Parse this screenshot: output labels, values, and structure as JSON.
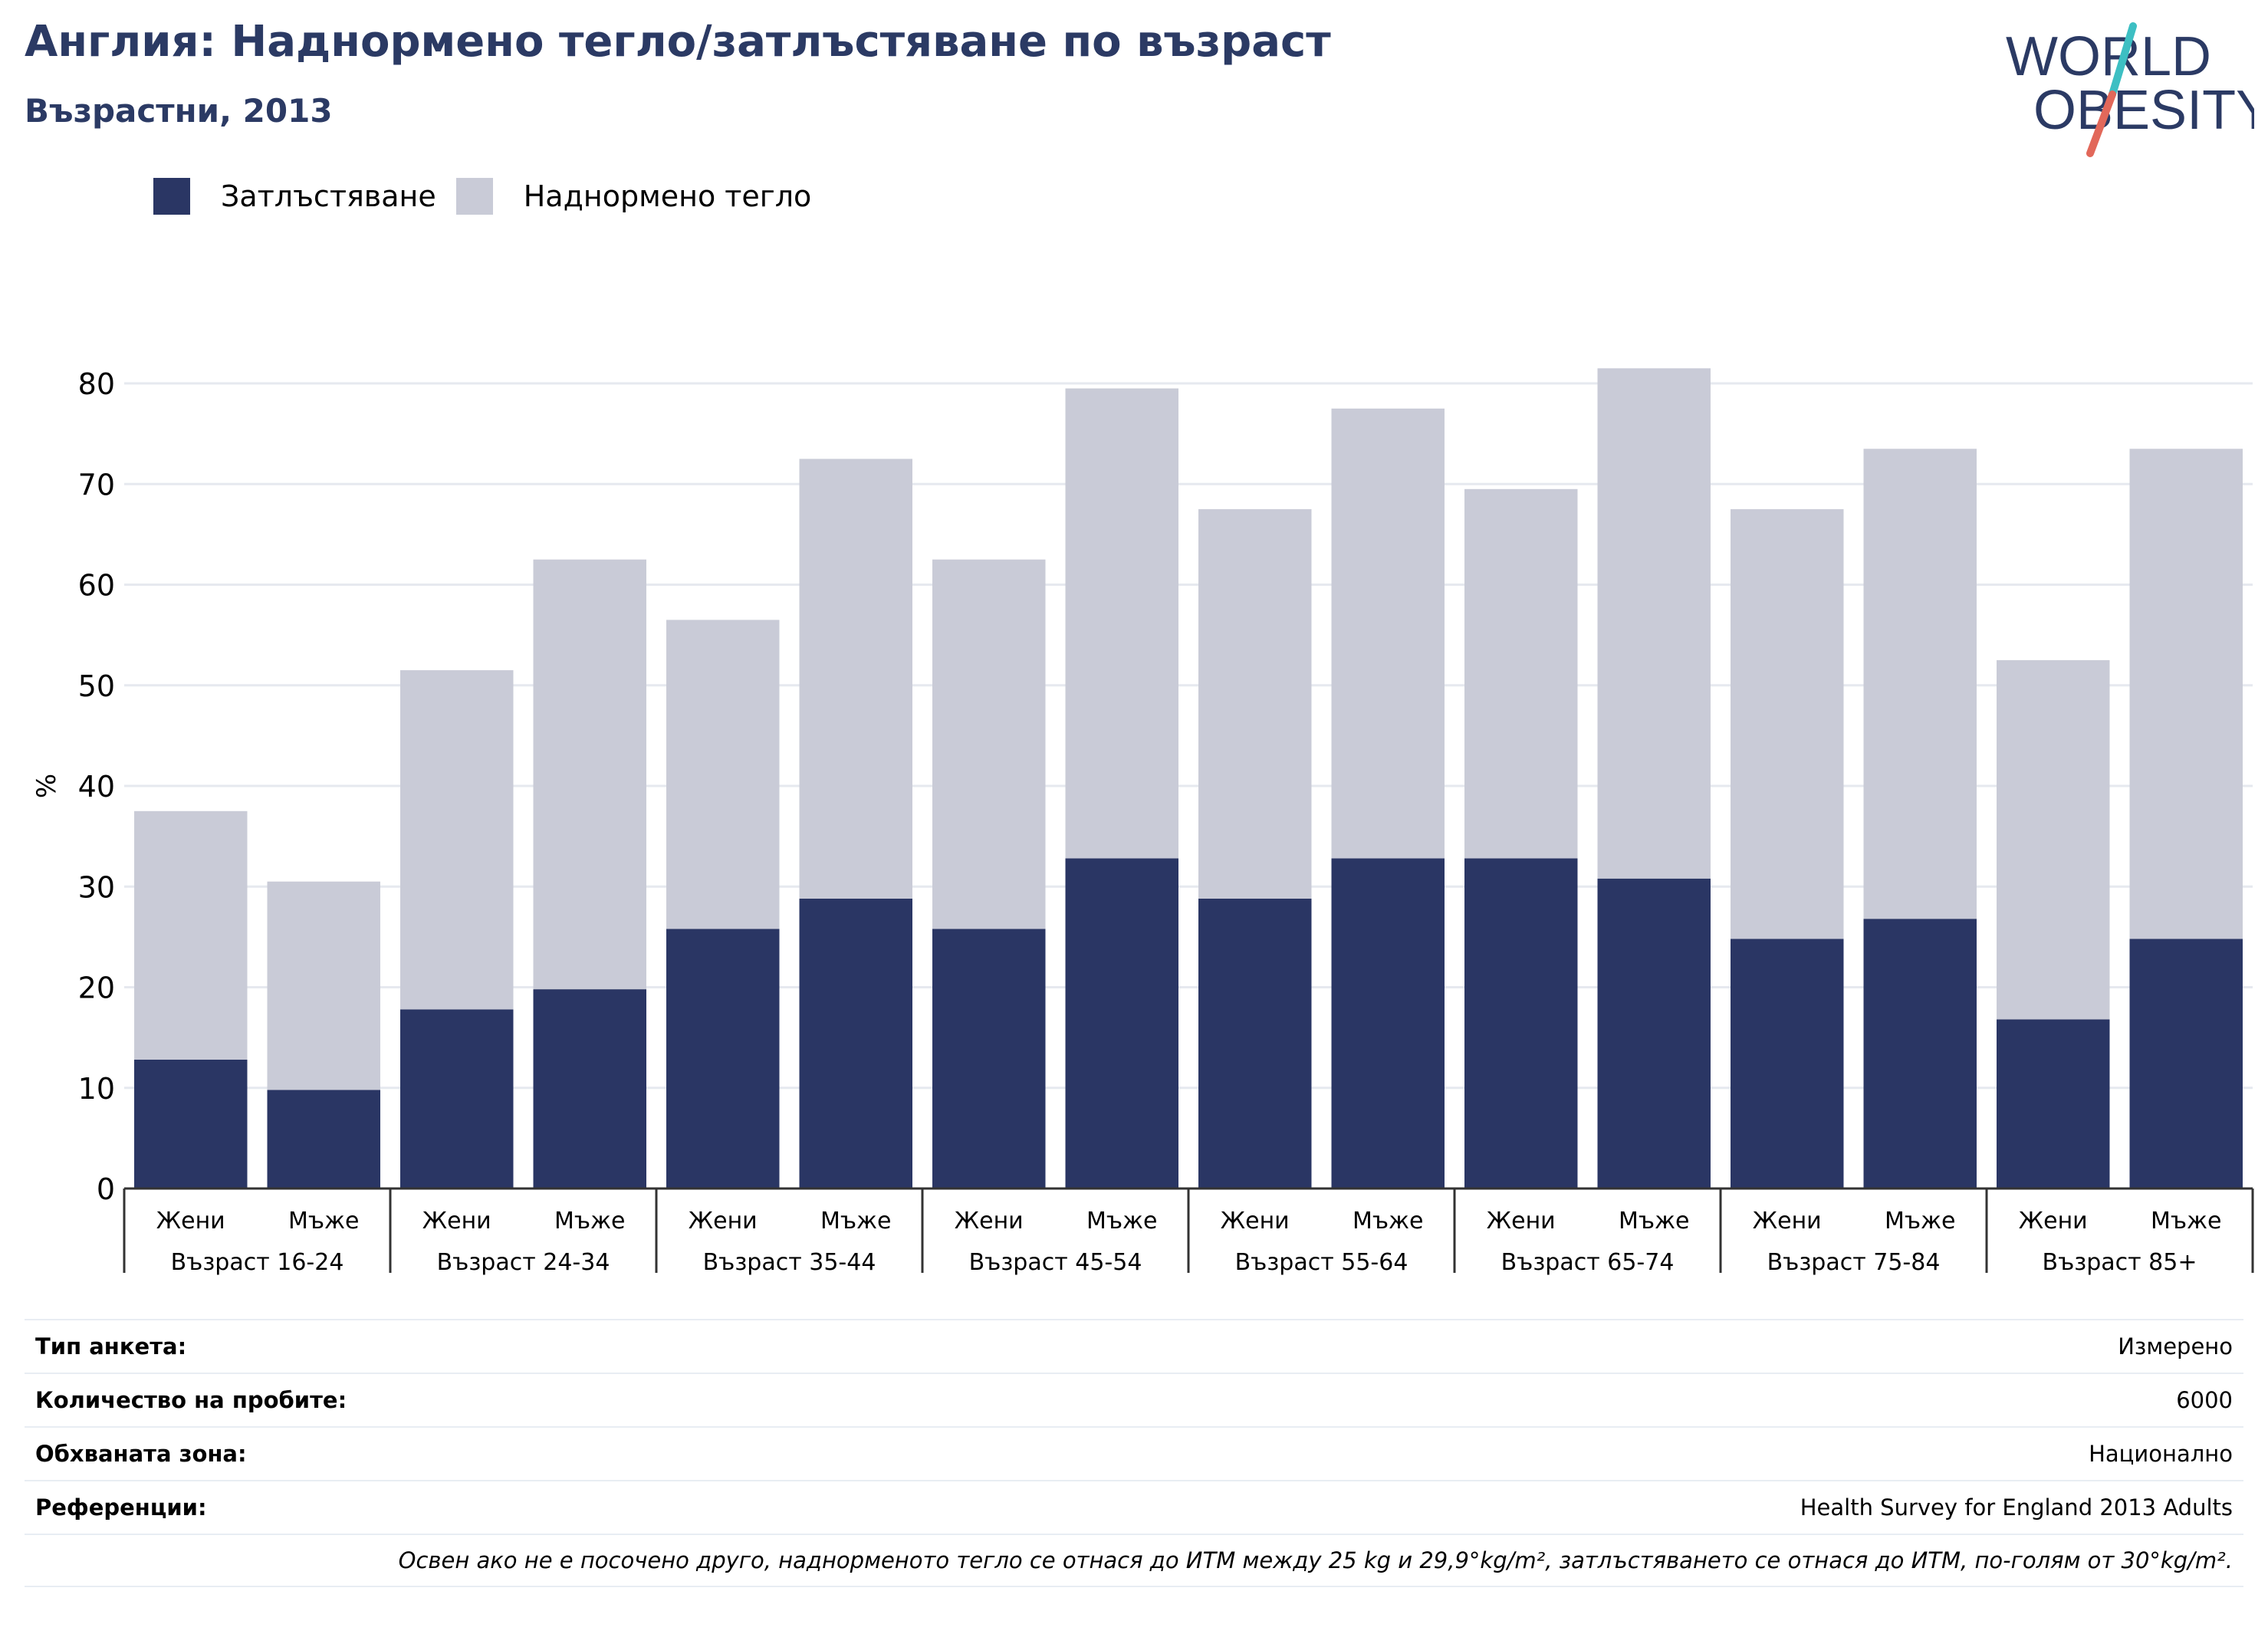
{
  "header": {
    "title": "Англия: Наднормено тегло/затлъстяване по възраст",
    "subtitle": "Възрастни, 2013"
  },
  "logo": {
    "line1": "WORLD",
    "line2": "OBESITY",
    "colors": {
      "text": "#2b3a64",
      "slash_top": "#3dbfc3",
      "slash_bottom": "#e2685a"
    }
  },
  "colors": {
    "obesity": "#2a3664",
    "overweight": "#c9cbd7",
    "grid": "#e6e9ef",
    "axis": "#333333"
  },
  "chart_data": {
    "type": "bar",
    "stacked": true,
    "title": "Англия: Наднормено тегло/затлъстяване по възраст",
    "subtitle": "Възрастни, 2013",
    "ylabel": "%",
    "ylim": [
      0,
      80
    ],
    "yticks": [
      0,
      10,
      20,
      30,
      40,
      50,
      60,
      70,
      80
    ],
    "grid": true,
    "legend_position": "top-left",
    "groups": [
      "Възраст 16-24",
      "Възраст 24-34",
      "Възраст 35-44",
      "Възраст 45-54",
      "Възраст 55-64",
      "Възраст 65-74",
      "Възраст 75-84",
      "Възраст 85+"
    ],
    "subcategories": [
      "Жени",
      "Мъже"
    ],
    "series": [
      {
        "name": "Затлъстяване",
        "color": "#2a3664",
        "values": [
          12.8,
          9.8,
          17.8,
          19.8,
          25.8,
          28.8,
          25.8,
          32.8,
          28.8,
          32.8,
          32.8,
          30.8,
          24.8,
          26.8,
          16.8,
          24.8
        ]
      },
      {
        "name": "Наднормено тегло",
        "color": "#c9cbd7",
        "values": [
          24.7,
          20.7,
          33.7,
          42.7,
          30.7,
          43.7,
          36.7,
          46.7,
          38.7,
          44.7,
          36.7,
          50.7,
          42.7,
          46.7,
          35.7,
          48.7
        ]
      }
    ]
  },
  "info": {
    "rows": [
      {
        "key": "Тип анкета:",
        "value": "Измерено"
      },
      {
        "key": "Количество на пробите:",
        "value": "6000"
      },
      {
        "key": "Обхваната зона:",
        "value": "Национално"
      },
      {
        "key": "Референции:",
        "value": "Health Survey for England 2013 Adults"
      }
    ],
    "note": "Освен ако не е посочено друго, наднорменото тегло се отнася до ИТМ между 25 kg и 29,9°kg/m², затлъстяването се отнася до ИТМ, по-голям от 30°kg/m²."
  }
}
